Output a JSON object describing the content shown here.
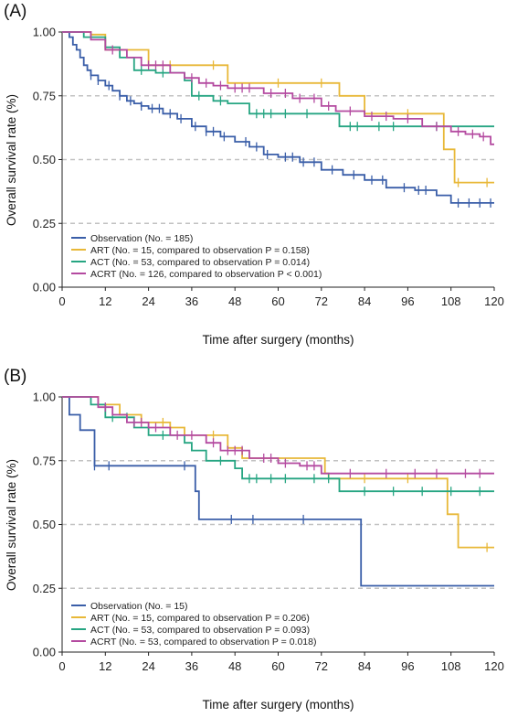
{
  "chart_data": [
    {
      "type": "line",
      "panel_label": "(A)",
      "xlabel": "Time after surgery (months)",
      "ylabel": "Overall survival rate (%)",
      "xlim": [
        0,
        120
      ],
      "ylim": [
        0,
        1
      ],
      "xticks": [
        "0",
        "12",
        "24",
        "36",
        "48",
        "60",
        "72",
        "84",
        "96",
        "108",
        "120"
      ],
      "yticks": [
        "0.00",
        "0.25",
        "0.50",
        "0.75",
        "1.00"
      ],
      "reference_lines": [
        0.25,
        0.5,
        0.75
      ],
      "legend_position": "bottom-left",
      "series": [
        {
          "name": "Observation (No. = 185)",
          "color": "#3a5ea8",
          "steps": [
            [
              0,
              1.0
            ],
            [
              2,
              0.98
            ],
            [
              3,
              0.95
            ],
            [
              4,
              0.93
            ],
            [
              5,
              0.9
            ],
            [
              6,
              0.87
            ],
            [
              7,
              0.85
            ],
            [
              8,
              0.83
            ],
            [
              10,
              0.81
            ],
            [
              12,
              0.79
            ],
            [
              14,
              0.77
            ],
            [
              16,
              0.75
            ],
            [
              18,
              0.73
            ],
            [
              20,
              0.72
            ],
            [
              22,
              0.71
            ],
            [
              24,
              0.7
            ],
            [
              28,
              0.68
            ],
            [
              32,
              0.66
            ],
            [
              36,
              0.63
            ],
            [
              40,
              0.61
            ],
            [
              44,
              0.59
            ],
            [
              48,
              0.57
            ],
            [
              52,
              0.55
            ],
            [
              56,
              0.52
            ],
            [
              60,
              0.51
            ],
            [
              66,
              0.49
            ],
            [
              72,
              0.46
            ],
            [
              78,
              0.44
            ],
            [
              84,
              0.42
            ],
            [
              90,
              0.39
            ],
            [
              98,
              0.38
            ],
            [
              104,
              0.36
            ],
            [
              108,
              0.33
            ],
            [
              120,
              0.33
            ]
          ],
          "censors": [
            8,
            10,
            13,
            16,
            19,
            22,
            25,
            27,
            30,
            33,
            37,
            40,
            42,
            45,
            51,
            54,
            57,
            62,
            64,
            67,
            70,
            75,
            81,
            86,
            89,
            95,
            99,
            101,
            110,
            113,
            116,
            119
          ]
        },
        {
          "name": "ART (No. = 15, compared to observation P = 0.158)",
          "color": "#e8b838",
          "steps": [
            [
              0,
              1.0
            ],
            [
              8,
              0.99
            ],
            [
              12,
              0.93
            ],
            [
              24,
              0.87
            ],
            [
              36,
              0.87
            ],
            [
              46,
              0.8
            ],
            [
              48,
              0.8
            ],
            [
              77,
              0.75
            ],
            [
              84,
              0.68
            ],
            [
              105,
              0.68
            ],
            [
              106,
              0.54
            ],
            [
              108,
              0.54
            ],
            [
              109,
              0.41
            ],
            [
              120,
              0.41
            ]
          ],
          "censors": [
            30,
            42,
            60,
            72,
            96,
            110,
            118
          ]
        },
        {
          "name": "ACT (No. = 53, compared to observation P = 0.014)",
          "color": "#26a582",
          "steps": [
            [
              0,
              1.0
            ],
            [
              6,
              0.98
            ],
            [
              12,
              0.94
            ],
            [
              16,
              0.9
            ],
            [
              20,
              0.85
            ],
            [
              26,
              0.84
            ],
            [
              34,
              0.81
            ],
            [
              36,
              0.75
            ],
            [
              42,
              0.73
            ],
            [
              46,
              0.72
            ],
            [
              52,
              0.68
            ],
            [
              64,
              0.68
            ],
            [
              77,
              0.63
            ],
            [
              120,
              0.63
            ]
          ],
          "censors": [
            22,
            28,
            38,
            44,
            54,
            56,
            58,
            62,
            68,
            80,
            82,
            88,
            92,
            104
          ]
        },
        {
          "name": "ACRT (No. = 126, compared to observation P < 0.001)",
          "color": "#b44aa0",
          "steps": [
            [
              0,
              1.0
            ],
            [
              8,
              0.97
            ],
            [
              12,
              0.93
            ],
            [
              18,
              0.9
            ],
            [
              22,
              0.87
            ],
            [
              30,
              0.84
            ],
            [
              34,
              0.82
            ],
            [
              38,
              0.8
            ],
            [
              42,
              0.79
            ],
            [
              46,
              0.78
            ],
            [
              56,
              0.76
            ],
            [
              64,
              0.74
            ],
            [
              72,
              0.71
            ],
            [
              76,
              0.69
            ],
            [
              84,
              0.67
            ],
            [
              92,
              0.66
            ],
            [
              100,
              0.63
            ],
            [
              108,
              0.61
            ],
            [
              112,
              0.6
            ],
            [
              116,
              0.59
            ],
            [
              119,
              0.56
            ],
            [
              120,
              0.56
            ]
          ],
          "censors": [
            14,
            24,
            26,
            28,
            36,
            40,
            44,
            48,
            50,
            52,
            58,
            62,
            66,
            70,
            74,
            80,
            86,
            90,
            96,
            104,
            110,
            114,
            117
          ]
        }
      ]
    },
    {
      "type": "line",
      "panel_label": "(B)",
      "xlabel": "Time after surgery (months)",
      "ylabel": "Overall survival rate (%)",
      "xlim": [
        0,
        120
      ],
      "ylim": [
        0,
        1
      ],
      "xticks": [
        "0",
        "12",
        "24",
        "36",
        "48",
        "60",
        "72",
        "84",
        "96",
        "108",
        "120"
      ],
      "yticks": [
        "0.00",
        "0.25",
        "0.50",
        "0.75",
        "1.00"
      ],
      "reference_lines": [
        0.25,
        0.5,
        0.75
      ],
      "legend_position": "bottom-left",
      "series": [
        {
          "name": "Observation (No. = 15)",
          "color": "#3a5ea8",
          "steps": [
            [
              0,
              1.0
            ],
            [
              2,
              0.93
            ],
            [
              5,
              0.87
            ],
            [
              9,
              0.73
            ],
            [
              36,
              0.73
            ],
            [
              37,
              0.63
            ],
            [
              38,
              0.52
            ],
            [
              82,
              0.52
            ],
            [
              83,
              0.26
            ],
            [
              120,
              0.26
            ]
          ],
          "censors": [
            9,
            13,
            34,
            47,
            53,
            67
          ]
        },
        {
          "name": "ART (No. = 15, compared to observation P = 0.206)",
          "color": "#e8b838",
          "steps": [
            [
              0,
              1.0
            ],
            [
              10,
              0.97
            ],
            [
              16,
              0.93
            ],
            [
              22,
              0.9
            ],
            [
              30,
              0.88
            ],
            [
              34,
              0.85
            ],
            [
              46,
              0.8
            ],
            [
              50,
              0.76
            ],
            [
              73,
              0.7
            ],
            [
              74,
              0.68
            ],
            [
              106,
              0.68
            ],
            [
              107,
              0.54
            ],
            [
              109,
              0.54
            ],
            [
              110,
              0.41
            ],
            [
              120,
              0.41
            ]
          ],
          "censors": [
            28,
            42,
            84,
            96,
            118
          ]
        },
        {
          "name": "ACT (No. = 53, compared to observation P = 0.093)",
          "color": "#26a582",
          "steps": [
            [
              0,
              1.0
            ],
            [
              8,
              0.97
            ],
            [
              12,
              0.92
            ],
            [
              20,
              0.88
            ],
            [
              24,
              0.85
            ],
            [
              34,
              0.82
            ],
            [
              36,
              0.79
            ],
            [
              40,
              0.75
            ],
            [
              48,
              0.72
            ],
            [
              50,
              0.68
            ],
            [
              64,
              0.68
            ],
            [
              77,
              0.63
            ],
            [
              120,
              0.63
            ]
          ],
          "censors": [
            14,
            18,
            28,
            44,
            52,
            54,
            58,
            62,
            70,
            74,
            84,
            92,
            100,
            108,
            116
          ]
        },
        {
          "name": "ACRT (No. = 53, compared to observation P = 0.018)",
          "color": "#b44aa0",
          "steps": [
            [
              0,
              1.0
            ],
            [
              10,
              0.96
            ],
            [
              14,
              0.93
            ],
            [
              18,
              0.9
            ],
            [
              24,
              0.88
            ],
            [
              30,
              0.85
            ],
            [
              40,
              0.82
            ],
            [
              44,
              0.79
            ],
            [
              52,
              0.76
            ],
            [
              60,
              0.74
            ],
            [
              66,
              0.73
            ],
            [
              72,
              0.7
            ],
            [
              120,
              0.7
            ]
          ],
          "censors": [
            12,
            20,
            22,
            26,
            32,
            36,
            42,
            46,
            48,
            50,
            56,
            58,
            62,
            68,
            70,
            80,
            90,
            98,
            104,
            112,
            116
          ]
        }
      ]
    }
  ]
}
